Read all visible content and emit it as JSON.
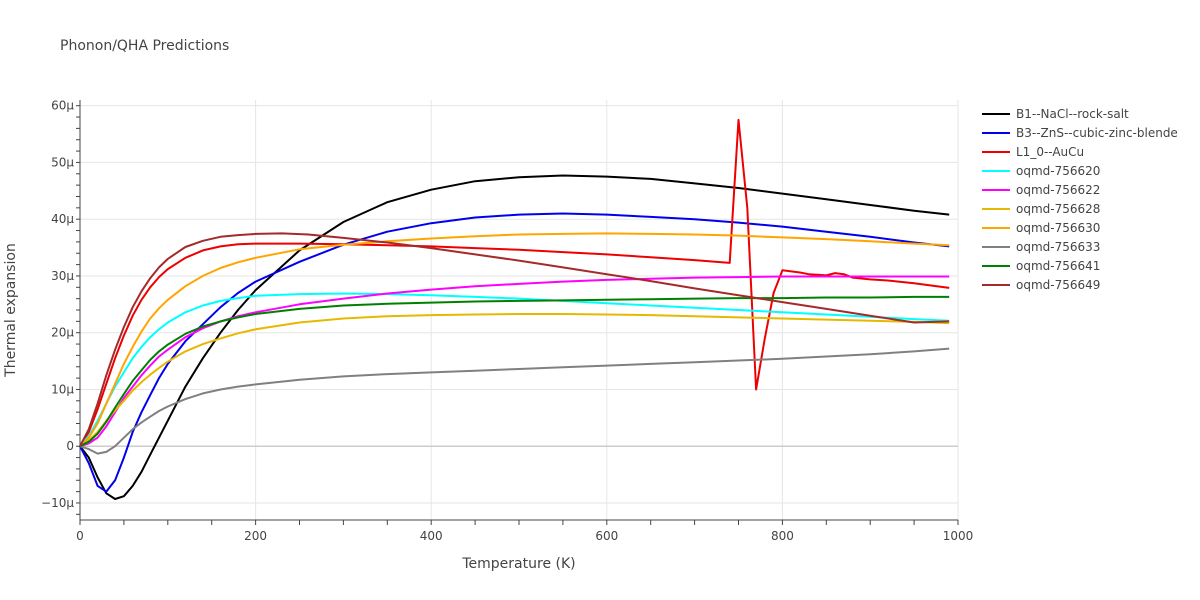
{
  "chart_data": {
    "type": "line",
    "title": "Phonon/QHA Predictions",
    "xlabel": "Temperature (K)",
    "ylabel": "Thermal expansion",
    "xlim": [
      0,
      1000
    ],
    "ylim": [
      -13,
      61
    ],
    "y_unit_suffix": "μ",
    "xticks": [
      0,
      200,
      400,
      600,
      800,
      1000
    ],
    "yticks": [
      -10,
      0,
      10,
      20,
      30,
      40,
      50,
      60
    ],
    "grid": true,
    "legend_position": "right",
    "series": [
      {
        "name": "B1--NaCl--rock-salt",
        "color": "#000000",
        "x": [
          0,
          10,
          20,
          30,
          40,
          50,
          60,
          70,
          80,
          90,
          100,
          120,
          140,
          160,
          180,
          200,
          250,
          300,
          350,
          400,
          450,
          500,
          550,
          600,
          650,
          700,
          750,
          800,
          850,
          900,
          950,
          990
        ],
        "y": [
          0,
          -2,
          -5.5,
          -8.3,
          -9.3,
          -8.8,
          -7,
          -4.5,
          -1.5,
          1.5,
          4.5,
          10.5,
          15.5,
          20,
          24,
          27.5,
          34.5,
          39.5,
          43,
          45.2,
          46.7,
          47.4,
          47.7,
          47.5,
          47.1,
          46.3,
          45.5,
          44.5,
          43.5,
          42.5,
          41.5,
          40.8
        ]
      },
      {
        "name": "B3--ZnS--cubic-zinc-blende",
        "color": "#0000ee",
        "x": [
          0,
          10,
          20,
          30,
          40,
          50,
          60,
          70,
          80,
          90,
          100,
          120,
          140,
          160,
          180,
          200,
          250,
          300,
          350,
          400,
          450,
          500,
          550,
          600,
          650,
          700,
          750,
          800,
          850,
          900,
          950,
          990
        ],
        "y": [
          0,
          -3,
          -7,
          -8,
          -6,
          -2,
          2.5,
          6,
          9,
          12,
          14.5,
          18.5,
          21.5,
          24.5,
          27,
          29,
          32.5,
          35.5,
          37.8,
          39.3,
          40.3,
          40.8,
          41,
          40.8,
          40.4,
          40,
          39.4,
          38.7,
          37.8,
          36.9,
          35.9,
          35.2
        ]
      },
      {
        "name": "L1_0--AuCu",
        "color": "#ee0000",
        "x": [
          0,
          10,
          20,
          30,
          40,
          50,
          60,
          70,
          80,
          90,
          100,
          120,
          140,
          160,
          180,
          200,
          250,
          300,
          350,
          400,
          450,
          500,
          550,
          600,
          650,
          700,
          740,
          750,
          760,
          770,
          780,
          790,
          800,
          810,
          820,
          830,
          840,
          850,
          860,
          870,
          880,
          900,
          920,
          950,
          990
        ],
        "y": [
          0,
          2.5,
          6.5,
          11,
          15.5,
          19.5,
          23,
          25.8,
          28,
          29.8,
          31.2,
          33.2,
          34.5,
          35.2,
          35.6,
          35.7,
          35.7,
          35.6,
          35.4,
          35.2,
          34.9,
          34.6,
          34.2,
          33.8,
          33.3,
          32.8,
          32.3,
          57.5,
          42,
          10,
          19,
          27,
          31,
          30.8,
          30.6,
          30.3,
          30.2,
          30.1,
          30.5,
          30.3,
          29.7,
          29.4,
          29.2,
          28.7,
          27.9
        ]
      },
      {
        "name": "oqmd-756620",
        "color": "#00ffff",
        "x": [
          0,
          10,
          20,
          30,
          40,
          50,
          60,
          70,
          80,
          90,
          100,
          120,
          140,
          160,
          180,
          200,
          250,
          300,
          350,
          400,
          450,
          500,
          550,
          600,
          650,
          700,
          750,
          800,
          850,
          900,
          950,
          990
        ],
        "y": [
          0,
          1.8,
          4.5,
          7.5,
          10.5,
          13,
          15.5,
          17.5,
          19.2,
          20.6,
          21.8,
          23.6,
          24.8,
          25.6,
          26.1,
          26.5,
          26.8,
          26.9,
          26.8,
          26.6,
          26.3,
          26,
          25.6,
          25.2,
          24.8,
          24.4,
          24,
          23.6,
          23.2,
          22.8,
          22.4,
          22.1
        ]
      },
      {
        "name": "oqmd-756622",
        "color": "#ff00ff",
        "x": [
          0,
          10,
          20,
          30,
          40,
          50,
          60,
          70,
          80,
          90,
          100,
          120,
          140,
          160,
          180,
          200,
          250,
          300,
          350,
          400,
          450,
          500,
          550,
          600,
          650,
          700,
          750,
          800,
          850,
          900,
          950,
          990
        ],
        "y": [
          0,
          0.5,
          1.5,
          3.5,
          6,
          8.5,
          10.5,
          12.5,
          14.2,
          15.8,
          17,
          19.2,
          20.8,
          22,
          22.9,
          23.6,
          25,
          26,
          26.9,
          27.6,
          28.2,
          28.6,
          29,
          29.3,
          29.5,
          29.7,
          29.8,
          29.9,
          29.9,
          29.9,
          29.9,
          29.9
        ]
      },
      {
        "name": "oqmd-756628",
        "color": "#e6b800",
        "x": [
          0,
          10,
          20,
          30,
          40,
          50,
          60,
          70,
          80,
          90,
          100,
          120,
          140,
          160,
          180,
          200,
          250,
          300,
          350,
          400,
          450,
          500,
          550,
          600,
          650,
          700,
          750,
          800,
          850,
          900,
          950,
          990
        ],
        "y": [
          0,
          1,
          2.5,
          4.5,
          6.3,
          8,
          9.8,
          11.3,
          12.6,
          13.8,
          14.9,
          16.7,
          18,
          19,
          19.9,
          20.6,
          21.8,
          22.5,
          22.9,
          23.1,
          23.2,
          23.3,
          23.3,
          23.2,
          23.1,
          22.9,
          22.7,
          22.5,
          22.3,
          22.1,
          21.9,
          21.7
        ]
      },
      {
        "name": "oqmd-756630",
        "color": "#ffa500",
        "x": [
          0,
          10,
          20,
          30,
          40,
          50,
          60,
          70,
          80,
          90,
          100,
          120,
          140,
          160,
          180,
          200,
          250,
          300,
          350,
          400,
          450,
          500,
          550,
          600,
          650,
          700,
          750,
          800,
          850,
          900,
          950,
          990
        ],
        "y": [
          0,
          1.5,
          4,
          7.5,
          11,
          14.5,
          17.5,
          20.2,
          22.5,
          24.3,
          25.8,
          28.2,
          30,
          31.4,
          32.4,
          33.2,
          34.7,
          35.5,
          36.1,
          36.6,
          37,
          37.3,
          37.4,
          37.5,
          37.4,
          37.3,
          37.1,
          36.8,
          36.5,
          36.1,
          35.7,
          35.4
        ]
      },
      {
        "name": "oqmd-756633",
        "color": "#808080",
        "x": [
          0,
          10,
          20,
          30,
          40,
          50,
          60,
          70,
          80,
          90,
          100,
          120,
          140,
          160,
          180,
          200,
          250,
          300,
          350,
          400,
          450,
          500,
          550,
          600,
          650,
          700,
          750,
          800,
          850,
          900,
          950,
          990
        ],
        "y": [
          0,
          -0.5,
          -1.3,
          -1,
          0,
          1.5,
          3,
          4.2,
          5.2,
          6.2,
          7,
          8.3,
          9.3,
          10,
          10.5,
          10.9,
          11.7,
          12.3,
          12.7,
          13,
          13.3,
          13.6,
          13.9,
          14.2,
          14.5,
          14.8,
          15.1,
          15.4,
          15.8,
          16.2,
          16.7,
          17.2
        ]
      },
      {
        "name": "oqmd-756641",
        "color": "#008000",
        "x": [
          0,
          10,
          20,
          30,
          40,
          50,
          60,
          70,
          80,
          90,
          100,
          120,
          140,
          160,
          180,
          200,
          250,
          300,
          350,
          400,
          450,
          500,
          550,
          600,
          650,
          700,
          750,
          800,
          850,
          900,
          950,
          990
        ],
        "y": [
          0,
          0.8,
          2.2,
          4.3,
          6.8,
          9.2,
          11.5,
          13.4,
          15.2,
          16.7,
          17.9,
          19.8,
          21.1,
          22,
          22.7,
          23.3,
          24.2,
          24.8,
          25.1,
          25.3,
          25.5,
          25.6,
          25.7,
          25.8,
          25.9,
          26,
          26.1,
          26.1,
          26.2,
          26.2,
          26.3,
          26.3
        ]
      },
      {
        "name": "oqmd-756649",
        "color": "#a52a2a",
        "x": [
          0,
          10,
          20,
          30,
          40,
          50,
          60,
          70,
          80,
          90,
          100,
          120,
          140,
          160,
          180,
          200,
          230,
          260,
          300,
          350,
          400,
          450,
          500,
          550,
          600,
          650,
          700,
          750,
          800,
          850,
          900,
          950,
          990
        ],
        "y": [
          0,
          3,
          7.5,
          12.5,
          17,
          21,
          24.5,
          27.3,
          29.6,
          31.5,
          33,
          35.1,
          36.2,
          36.9,
          37.2,
          37.4,
          37.5,
          37.3,
          36.7,
          35.9,
          34.9,
          33.8,
          32.7,
          31.5,
          30.3,
          29.1,
          27.8,
          26.6,
          25.4,
          24.2,
          23,
          21.8,
          22
        ]
      }
    ]
  }
}
